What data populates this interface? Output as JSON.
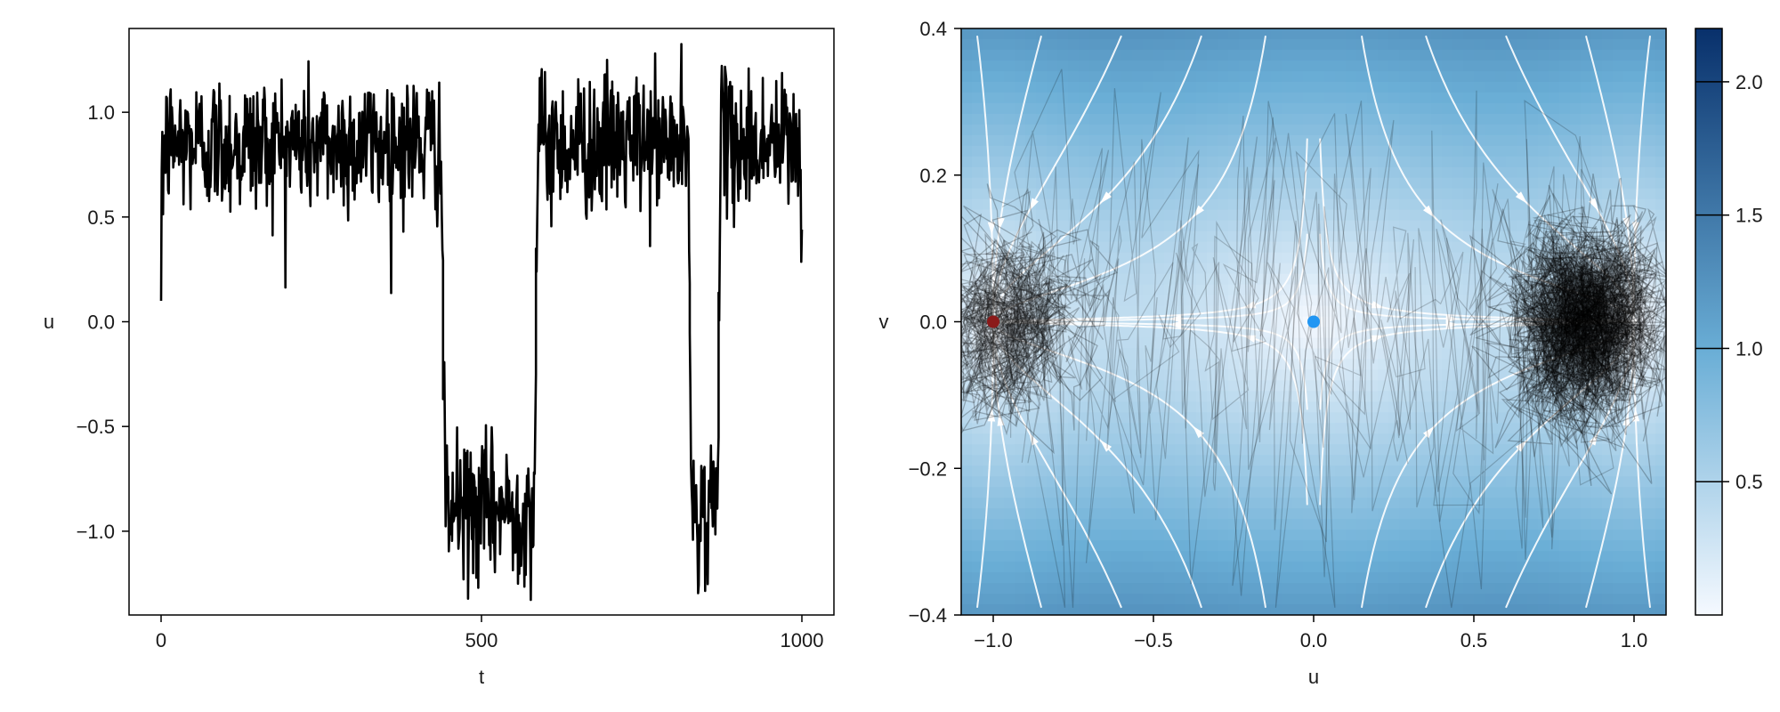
{
  "chart_data": [
    {
      "type": "line",
      "xlabel": "t",
      "ylabel": "u",
      "xlim": [
        -50,
        1050
      ],
      "ylim": [
        -1.4,
        1.4
      ],
      "xticks": [
        0,
        500,
        1000
      ],
      "xtick_labels": [
        "0",
        "500",
        "1000"
      ],
      "yticks": [
        -1.0,
        -0.5,
        0.0,
        0.5,
        1.0
      ],
      "ytick_labels": [
        "−1.0",
        "−0.5",
        "0.0",
        "0.5",
        "1.0"
      ],
      "grid": false,
      "series": [
        {
          "color": "#000000",
          "noise_sd": 0.17,
          "segments": [
            {
              "t": [
                0,
                440
              ],
              "level": 0.85
            },
            {
              "t": [
                440,
                585
              ],
              "level": -0.9
            },
            {
              "t": [
                585,
                825
              ],
              "level": 0.85
            },
            {
              "t": [
                825,
                870
              ],
              "level": -0.9
            },
            {
              "t": [
                870,
                1000
              ],
              "level": 0.85
            }
          ]
        }
      ]
    },
    {
      "type": "heatmap",
      "xlabel": "u",
      "ylabel": "v",
      "xlim": [
        -1.1,
        1.1
      ],
      "ylim": [
        -0.4,
        0.4
      ],
      "xticks": [
        -1.0,
        -0.5,
        0.0,
        0.5,
        1.0
      ],
      "xtick_labels": [
        "−1.0",
        "−0.5",
        "0.0",
        "0.5",
        "1.0"
      ],
      "yticks": [
        -0.4,
        -0.2,
        0.0,
        0.2,
        0.4
      ],
      "ytick_labels": [
        "−0.4",
        "−0.2",
        "0.0",
        "0.2",
        "0.4"
      ],
      "grid": false,
      "colormap": "Blues",
      "colors": {
        "low": "#f5f9ff",
        "mid": "#6aaed6",
        "high": "#08306b"
      },
      "colorbar": {
        "range": [
          0,
          2.2
        ],
        "ticks": [
          0.5,
          1.0,
          1.5,
          2.0
        ],
        "tick_labels": [
          "0.5",
          "1.0",
          "1.5",
          "2.0"
        ]
      },
      "field": "magnitude of vector field (u - u^3, -v) over the u-v plane",
      "streamline_color": "#ffffff",
      "trajectories": {
        "color": "#000000",
        "alpha": 0.25,
        "clusters": [
          {
            "u": 0.85,
            "v": 0.0
          },
          {
            "u": -0.95,
            "v": 0.0
          }
        ]
      },
      "markers": [
        {
          "name": "fixed point",
          "u": -1.0,
          "v": 0.0,
          "color": "#8b1a1a"
        },
        {
          "name": "fixed point",
          "u": 0.0,
          "v": 0.0,
          "color": "#2196f3"
        }
      ]
    }
  ]
}
